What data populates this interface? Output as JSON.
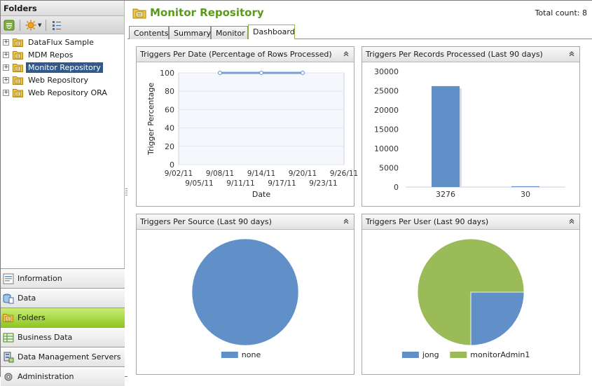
{
  "sidebar": {
    "title": "Folders",
    "toolbar": [
      {
        "icon": "collapse-all-icon"
      },
      {
        "icon": "new-item-icon"
      },
      {
        "icon": "list-view-icon"
      }
    ],
    "tree": [
      {
        "label": "DataFlux Sample",
        "selected": false
      },
      {
        "label": "MDM Repos",
        "selected": false
      },
      {
        "label": "Monitor Repository",
        "selected": true
      },
      {
        "label": "Web Repository",
        "selected": false
      },
      {
        "label": "Web Repository ORA",
        "selected": false
      }
    ],
    "nav": [
      {
        "label": "Information",
        "icon": "information-icon",
        "active": false
      },
      {
        "label": "Data",
        "icon": "data-icon",
        "active": false
      },
      {
        "label": "Folders",
        "icon": "folders-icon",
        "active": true
      },
      {
        "label": "Business Data",
        "icon": "business-data-icon",
        "active": false
      },
      {
        "label": "Data Management Servers",
        "icon": "servers-icon",
        "active": false
      },
      {
        "label": "Administration",
        "icon": "administration-icon",
        "active": false
      }
    ]
  },
  "header": {
    "title": "Monitor Repository",
    "total_count": "Total count: 8"
  },
  "tabs": [
    {
      "label": "Contents",
      "active": false
    },
    {
      "label": "Summary",
      "active": false
    },
    {
      "label": "Monitor",
      "active": false
    },
    {
      "label": "Dashboard",
      "active": true
    }
  ],
  "colors": {
    "blue": "#6190c9",
    "green": "#9bbb59",
    "accent": "#5a9a1c",
    "selected": "#32598c"
  },
  "panels": [
    {
      "title": "Triggers Per Date (Percentage of Rows Processed)"
    },
    {
      "title": "Triggers Per Records Processed (Last 90 days)"
    },
    {
      "title": "Triggers Per Source (Last 90 days)"
    },
    {
      "title": "Triggers Per User (Last 90 days)"
    }
  ],
  "chart_data": [
    {
      "type": "line",
      "title": "Triggers Per Date (Percentage of Rows Processed)",
      "xlabel": "Date",
      "ylabel": "Trigger Percentage",
      "x_tick_labels": [
        "9/02/11",
        "9/05/11",
        "9/08/11",
        "9/11/11",
        "9/14/11",
        "9/17/11",
        "9/20/11",
        "9/23/11",
        "9/26/11"
      ],
      "xlim": [
        "2011-09-02",
        "2011-09-26"
      ],
      "ylim": [
        0,
        100
      ],
      "y_ticks": [
        0,
        20,
        40,
        60,
        80,
        100
      ],
      "series": [
        {
          "x": [
            "2011-09-08",
            "2011-09-14",
            "2011-09-20"
          ],
          "values": [
            100,
            100,
            100
          ]
        }
      ]
    },
    {
      "type": "bar",
      "title": "Triggers Per Records Processed (Last 90 days)",
      "categories": [
        "3276",
        "30"
      ],
      "values": [
        26200,
        200
      ],
      "ylim": [
        0,
        30000
      ],
      "y_ticks": [
        0,
        5000,
        10000,
        15000,
        20000,
        25000,
        30000
      ]
    },
    {
      "type": "pie",
      "title": "Triggers Per Source (Last 90 days)",
      "labels": [
        "none"
      ],
      "values": [
        1
      ]
    },
    {
      "type": "pie",
      "title": "Triggers Per User (Last 90 days)",
      "labels": [
        "jong",
        "monitorAdmin1"
      ],
      "values": [
        2,
        6
      ]
    }
  ]
}
